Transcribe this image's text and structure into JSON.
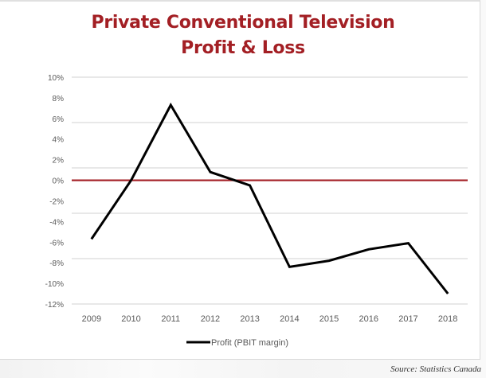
{
  "chart_data": {
    "type": "line",
    "title": "Private Conventional Television",
    "subtitle": "Profit & Loss",
    "xlabel": "",
    "ylabel": "",
    "categories": [
      "2009",
      "2010",
      "2011",
      "2012",
      "2013",
      "2014",
      "2015",
      "2016",
      "2017",
      "2018"
    ],
    "series": [
      {
        "name": "Profit (PBIT margin)",
        "color": "#000000",
        "values": [
          -5.7,
          0.0,
          7.3,
          0.8,
          -0.5,
          -8.4,
          -7.8,
          -6.7,
          -6.1,
          -11.0
        ]
      }
    ],
    "y_tick_labels": [
      "10%",
      "8%",
      "6%",
      "4%",
      "2%",
      "0%",
      "-2%",
      "-4%",
      "-6%",
      "-8%",
      "-10%",
      "-12%"
    ],
    "y_ticks": [
      10,
      8,
      6,
      4,
      2,
      0,
      -2,
      -4,
      -6,
      -8,
      -10,
      -12
    ],
    "ylim": [
      -12,
      10
    ],
    "gridlines_at": [
      10,
      5.6,
      1.2,
      -3.2,
      -7.6,
      -12
    ],
    "reference_line": {
      "value": 0,
      "color": "#a31f24"
    },
    "grid": true,
    "legend": "bottom-center",
    "source": "Source: Statistics Canada"
  }
}
